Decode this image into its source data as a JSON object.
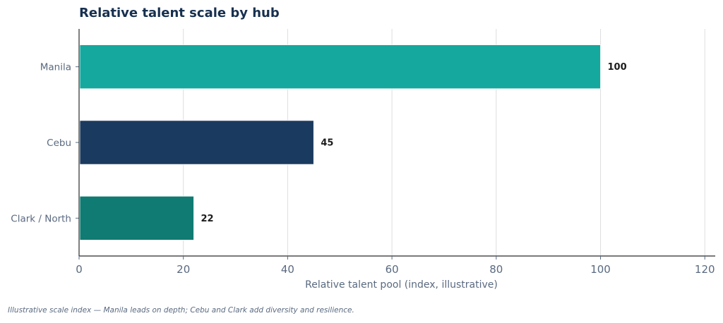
{
  "chart_data": {
    "type": "bar",
    "orientation": "horizontal",
    "title": "Relative talent scale by hub",
    "xlabel": "Relative talent pool (index, illustrative)",
    "ylabel": "",
    "categories": [
      "Manila",
      "Cebu",
      "Clark / North"
    ],
    "values": [
      100,
      45,
      22
    ],
    "colors": [
      "#14a89e",
      "#1b3a5f",
      "#107b72"
    ],
    "xlim": [
      0,
      122
    ],
    "xticks": [
      0,
      20,
      40,
      60,
      80,
      100,
      120
    ],
    "grid": "vertical",
    "data_labels": [
      "100",
      "45",
      "22"
    ]
  },
  "footnote": "Illustrative scale index — Manila leads on depth; Cebu and Clark add diversity and resilience."
}
